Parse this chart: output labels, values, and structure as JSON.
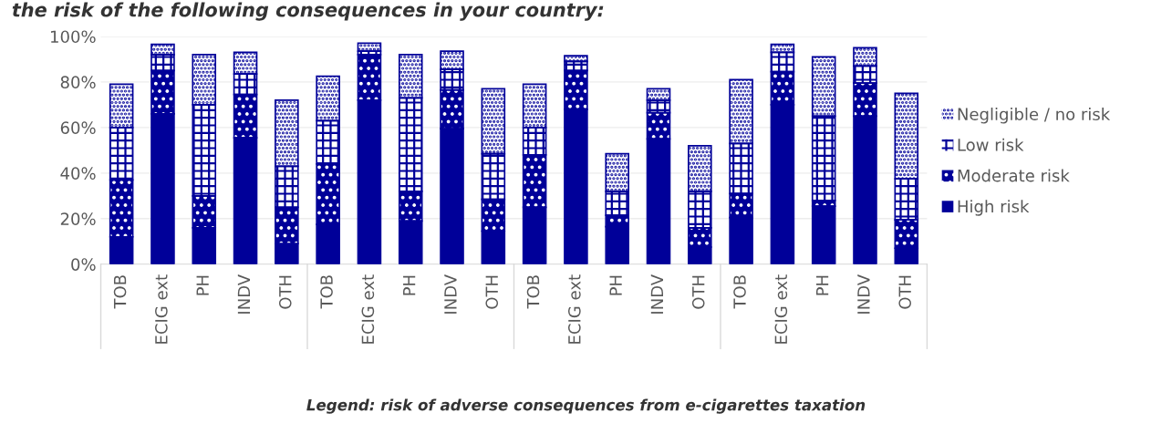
{
  "chart_data": {
    "type": "bar",
    "stacked": true,
    "title": "the risk of the following consequences in your country:",
    "annotations": [
      "Legend: risk of adverse consequences from e-cigarettes taxation"
    ],
    "categories": [
      "TOB",
      "ECIG ext",
      "PH",
      "INDV",
      "OTH",
      "TOB",
      "ECIG ext",
      "PH",
      "INDV",
      "OTH",
      "TOB",
      "ECIG ext",
      "PH",
      "INDV",
      "OTH",
      "TOB",
      "ECIG ext",
      "PH",
      "INDV",
      "OTH"
    ],
    "series": [
      {
        "name": "High risk",
        "color": "#000099",
        "values": [
          12,
          66,
          16,
          55.5,
          9,
          17.5,
          72,
          19,
          59.5,
          14.5,
          25,
          68,
          16.5,
          55,
          7.5,
          20.5,
          70,
          25.5,
          65,
          7
        ]
      },
      {
        "name": "Moderate risk",
        "color": "#000099",
        "values": [
          25,
          19,
          14,
          19,
          16,
          26.5,
          20,
          13,
          17,
          14,
          23,
          17,
          5,
          11.5,
          8.5,
          10.5,
          14.5,
          2.5,
          14.5,
          12.5
        ]
      },
      {
        "name": "Low risk",
        "color": "#000099",
        "values": [
          23,
          7,
          40,
          9,
          18,
          19,
          1.5,
          41,
          9,
          20,
          12,
          4,
          10.5,
          5.5,
          16,
          22,
          8.5,
          37,
          7.5,
          18
        ]
      },
      {
        "name": "Negligible / no risk",
        "color": "#000099",
        "values": [
          19,
          4.5,
          22,
          9.5,
          29,
          19.5,
          3.5,
          19,
          8,
          28.5,
          19,
          2.5,
          16.5,
          5,
          20,
          28,
          3.5,
          26,
          8,
          37.5
        ]
      }
    ],
    "ylim": [
      0,
      100
    ],
    "yticks": [
      {
        "value": 0,
        "label": "0%"
      },
      {
        "value": 20,
        "label": "20%"
      },
      {
        "value": 40,
        "label": "40%"
      },
      {
        "value": 60,
        "label": "60%"
      },
      {
        "value": 80,
        "label": "80%"
      },
      {
        "value": 100,
        "label": "100%"
      }
    ],
    "grid": "y",
    "legend": "right"
  }
}
